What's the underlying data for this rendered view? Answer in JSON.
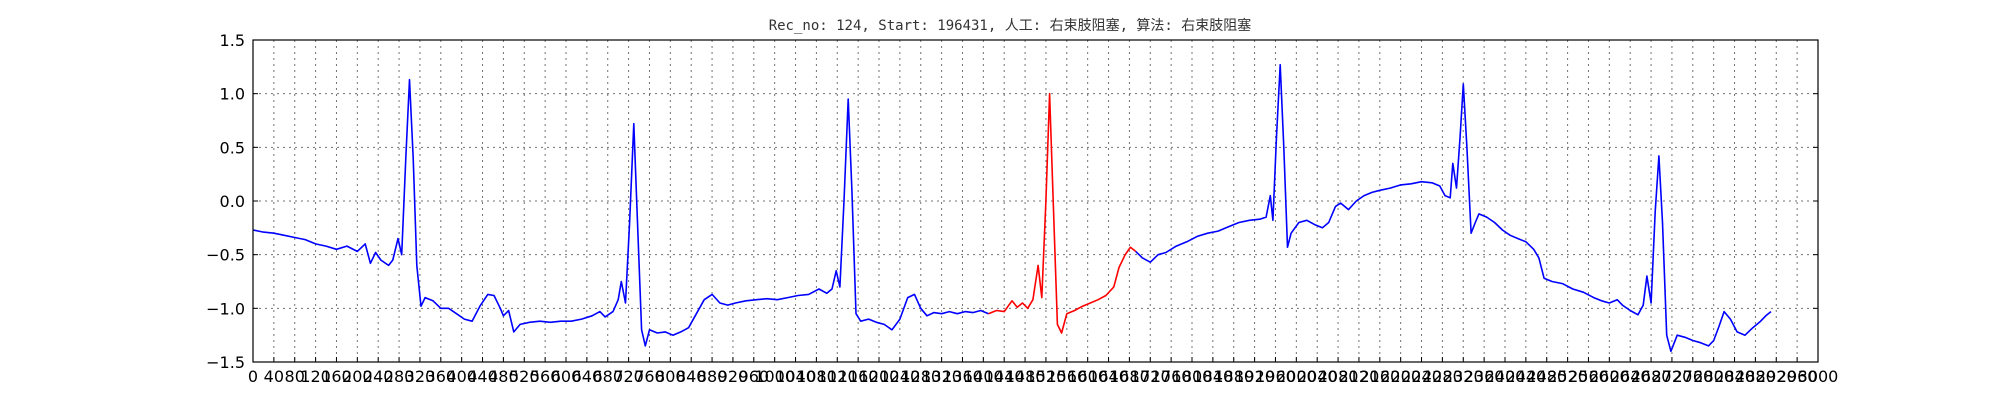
{
  "chart_data": {
    "type": "line",
    "title": "Rec_no: 124, Start: 196431, 人工: 右束肢阻塞, 算法: 右束肢阻塞",
    "xlabel": "",
    "ylabel": "",
    "xlim": [
      0,
      3000
    ],
    "ylim": [
      -1.5,
      1.5
    ],
    "grid": true,
    "yticks": [
      1.5,
      1.0,
      0.5,
      0.0,
      -0.5,
      -1.0,
      -1.5
    ],
    "ytick_labels": [
      "1.5",
      "1.0",
      "0.5",
      "0.0",
      "−0.5",
      "−1.0",
      "−1.5"
    ],
    "xticks": [
      0,
      40,
      80,
      120,
      160,
      200,
      240,
      280,
      320,
      360,
      400,
      440,
      480,
      520,
      560,
      600,
      640,
      680,
      720,
      760,
      800,
      840,
      880,
      920,
      960,
      1000,
      1040,
      1080,
      1120,
      1160,
      1200,
      1240,
      1280,
      1320,
      1360,
      1400,
      1440,
      1480,
      1520,
      1560,
      1600,
      1640,
      1680,
      1720,
      1760,
      1800,
      1840,
      1880,
      1920,
      1960,
      2000,
      2040,
      2080,
      2120,
      2160,
      2200,
      2240,
      2280,
      2320,
      2360,
      2400,
      2440,
      2480,
      2520,
      2560,
      2600,
      2640,
      2680,
      2720,
      2760,
      2800,
      2840,
      2880,
      2920,
      2960,
      3000
    ],
    "series": [
      {
        "color": "#0000ff",
        "points": [
          [
            0,
            -0.27
          ],
          [
            20,
            -0.29
          ],
          [
            40,
            -0.3
          ],
          [
            60,
            -0.32
          ],
          [
            80,
            -0.34
          ],
          [
            100,
            -0.36
          ],
          [
            120,
            -0.4
          ],
          [
            140,
            -0.42
          ],
          [
            160,
            -0.45
          ],
          [
            180,
            -0.42
          ],
          [
            200,
            -0.47
          ],
          [
            215,
            -0.4
          ],
          [
            225,
            -0.58
          ],
          [
            235,
            -0.48
          ],
          [
            245,
            -0.55
          ],
          [
            260,
            -0.6
          ],
          [
            268,
            -0.55
          ],
          [
            278,
            -0.35
          ],
          [
            285,
            -0.5
          ],
          [
            293,
            0.4
          ],
          [
            300,
            1.13
          ],
          [
            307,
            0.4
          ],
          [
            314,
            -0.6
          ],
          [
            322,
            -0.98
          ],
          [
            330,
            -0.9
          ],
          [
            345,
            -0.93
          ],
          [
            360,
            -1.0
          ],
          [
            375,
            -1.0
          ],
          [
            390,
            -1.05
          ],
          [
            405,
            -1.1
          ],
          [
            420,
            -1.12
          ],
          [
            435,
            -0.98
          ],
          [
            450,
            -0.87
          ],
          [
            462,
            -0.88
          ],
          [
            474,
            -1.0
          ],
          [
            480,
            -1.07
          ],
          [
            490,
            -1.02
          ],
          [
            500,
            -1.22
          ],
          [
            512,
            -1.15
          ],
          [
            530,
            -1.13
          ],
          [
            550,
            -1.12
          ],
          [
            570,
            -1.13
          ],
          [
            590,
            -1.12
          ],
          [
            610,
            -1.12
          ],
          [
            630,
            -1.1
          ],
          [
            650,
            -1.07
          ],
          [
            665,
            -1.03
          ],
          [
            675,
            -1.08
          ],
          [
            690,
            -1.03
          ],
          [
            700,
            -0.92
          ],
          [
            706,
            -0.75
          ],
          [
            714,
            -0.95
          ],
          [
            722,
            -0.2
          ],
          [
            730,
            0.72
          ],
          [
            737,
            -0.2
          ],
          [
            745,
            -1.2
          ],
          [
            752,
            -1.35
          ],
          [
            760,
            -1.2
          ],
          [
            775,
            -1.23
          ],
          [
            790,
            -1.22
          ],
          [
            805,
            -1.25
          ],
          [
            820,
            -1.22
          ],
          [
            835,
            -1.18
          ],
          [
            850,
            -1.05
          ],
          [
            865,
            -0.92
          ],
          [
            880,
            -0.87
          ],
          [
            895,
            -0.95
          ],
          [
            910,
            -0.97
          ],
          [
            925,
            -0.95
          ],
          [
            945,
            -0.93
          ],
          [
            965,
            -0.92
          ],
          [
            985,
            -0.91
          ],
          [
            1005,
            -0.92
          ],
          [
            1025,
            -0.9
          ],
          [
            1045,
            -0.88
          ],
          [
            1065,
            -0.87
          ],
          [
            1085,
            -0.82
          ],
          [
            1100,
            -0.86
          ],
          [
            1110,
            -0.82
          ],
          [
            1118,
            -0.65
          ],
          [
            1125,
            -0.8
          ],
          [
            1133,
            0.0
          ],
          [
            1141,
            0.95
          ],
          [
            1148,
            0.1
          ],
          [
            1156,
            -1.05
          ],
          [
            1165,
            -1.12
          ],
          [
            1180,
            -1.1
          ],
          [
            1195,
            -1.13
          ],
          [
            1210,
            -1.15
          ],
          [
            1225,
            -1.2
          ],
          [
            1240,
            -1.1
          ],
          [
            1255,
            -0.9
          ],
          [
            1268,
            -0.87
          ],
          [
            1280,
            -1.0
          ],
          [
            1292,
            -1.07
          ],
          [
            1305,
            -1.04
          ],
          [
            1320,
            -1.05
          ],
          [
            1335,
            -1.03
          ],
          [
            1350,
            -1.05
          ],
          [
            1365,
            -1.03
          ],
          [
            1380,
            -1.04
          ],
          [
            1395,
            -1.02
          ],
          [
            1410,
            -1.05
          ]
        ]
      },
      {
        "color": "#ff0000",
        "points": [
          [
            1410,
            -1.05
          ],
          [
            1425,
            -1.02
          ],
          [
            1440,
            -1.03
          ],
          [
            1455,
            -0.93
          ],
          [
            1465,
            -0.99
          ],
          [
            1475,
            -0.95
          ],
          [
            1485,
            -1.0
          ],
          [
            1495,
            -0.92
          ],
          [
            1505,
            -0.6
          ],
          [
            1512,
            -0.9
          ],
          [
            1520,
            0.0
          ],
          [
            1527,
            1.0
          ],
          [
            1534,
            0.0
          ],
          [
            1542,
            -1.15
          ],
          [
            1550,
            -1.23
          ],
          [
            1560,
            -1.05
          ],
          [
            1575,
            -1.02
          ],
          [
            1590,
            -0.98
          ],
          [
            1605,
            -0.95
          ],
          [
            1620,
            -0.92
          ],
          [
            1635,
            -0.88
          ],
          [
            1650,
            -0.8
          ],
          [
            1660,
            -0.62
          ],
          [
            1672,
            -0.5
          ],
          [
            1682,
            -0.43
          ],
          [
            1692,
            -0.47
          ]
        ]
      },
      {
        "color": "#0000ff",
        "points": [
          [
            1692,
            -0.47
          ],
          [
            1705,
            -0.53
          ],
          [
            1720,
            -0.57
          ],
          [
            1735,
            -0.5
          ],
          [
            1750,
            -0.48
          ],
          [
            1770,
            -0.42
          ],
          [
            1790,
            -0.38
          ],
          [
            1810,
            -0.33
          ],
          [
            1830,
            -0.3
          ],
          [
            1850,
            -0.28
          ],
          [
            1870,
            -0.24
          ],
          [
            1890,
            -0.2
          ],
          [
            1910,
            -0.18
          ],
          [
            1930,
            -0.17
          ],
          [
            1942,
            -0.15
          ],
          [
            1950,
            0.05
          ],
          [
            1955,
            -0.18
          ],
          [
            1962,
            0.6
          ],
          [
            1969,
            1.27
          ],
          [
            1976,
            0.5
          ],
          [
            1983,
            -0.43
          ],
          [
            1990,
            -0.3
          ],
          [
            2005,
            -0.2
          ],
          [
            2020,
            -0.18
          ],
          [
            2035,
            -0.22
          ],
          [
            2050,
            -0.25
          ],
          [
            2062,
            -0.2
          ],
          [
            2075,
            -0.05
          ],
          [
            2085,
            -0.02
          ],
          [
            2100,
            -0.08
          ],
          [
            2115,
            0.0
          ],
          [
            2130,
            0.05
          ],
          [
            2145,
            0.08
          ],
          [
            2160,
            0.1
          ],
          [
            2180,
            0.12
          ],
          [
            2200,
            0.15
          ],
          [
            2220,
            0.16
          ],
          [
            2240,
            0.18
          ],
          [
            2260,
            0.17
          ],
          [
            2275,
            0.14
          ],
          [
            2285,
            0.05
          ],
          [
            2295,
            0.03
          ],
          [
            2300,
            0.35
          ],
          [
            2307,
            0.12
          ],
          [
            2314,
            0.6
          ],
          [
            2320,
            1.09
          ],
          [
            2327,
            0.5
          ],
          [
            2335,
            -0.3
          ],
          [
            2343,
            -0.2
          ],
          [
            2350,
            -0.12
          ],
          [
            2365,
            -0.15
          ],
          [
            2380,
            -0.2
          ],
          [
            2395,
            -0.27
          ],
          [
            2410,
            -0.32
          ],
          [
            2425,
            -0.35
          ],
          [
            2440,
            -0.38
          ],
          [
            2455,
            -0.45
          ],
          [
            2465,
            -0.53
          ],
          [
            2475,
            -0.72
          ],
          [
            2490,
            -0.75
          ],
          [
            2510,
            -0.77
          ],
          [
            2530,
            -0.82
          ],
          [
            2550,
            -0.85
          ],
          [
            2570,
            -0.9
          ],
          [
            2585,
            -0.93
          ],
          [
            2600,
            -0.95
          ],
          [
            2615,
            -0.92
          ],
          [
            2625,
            -0.97
          ],
          [
            2640,
            -1.02
          ],
          [
            2655,
            -1.06
          ],
          [
            2665,
            -0.97
          ],
          [
            2672,
            -0.7
          ],
          [
            2680,
            -0.95
          ],
          [
            2688,
            -0.1
          ],
          [
            2695,
            0.42
          ],
          [
            2702,
            -0.2
          ],
          [
            2710,
            -1.25
          ],
          [
            2718,
            -1.4
          ],
          [
            2730,
            -1.25
          ],
          [
            2745,
            -1.27
          ],
          [
            2760,
            -1.3
          ],
          [
            2775,
            -1.32
          ],
          [
            2790,
            -1.35
          ],
          [
            2800,
            -1.3
          ],
          [
            2810,
            -1.17
          ],
          [
            2820,
            -1.03
          ],
          [
            2832,
            -1.1
          ],
          [
            2845,
            -1.22
          ],
          [
            2860,
            -1.25
          ],
          [
            2875,
            -1.18
          ],
          [
            2890,
            -1.12
          ],
          [
            2900,
            -1.07
          ],
          [
            2910,
            -1.03
          ]
        ]
      }
    ]
  }
}
